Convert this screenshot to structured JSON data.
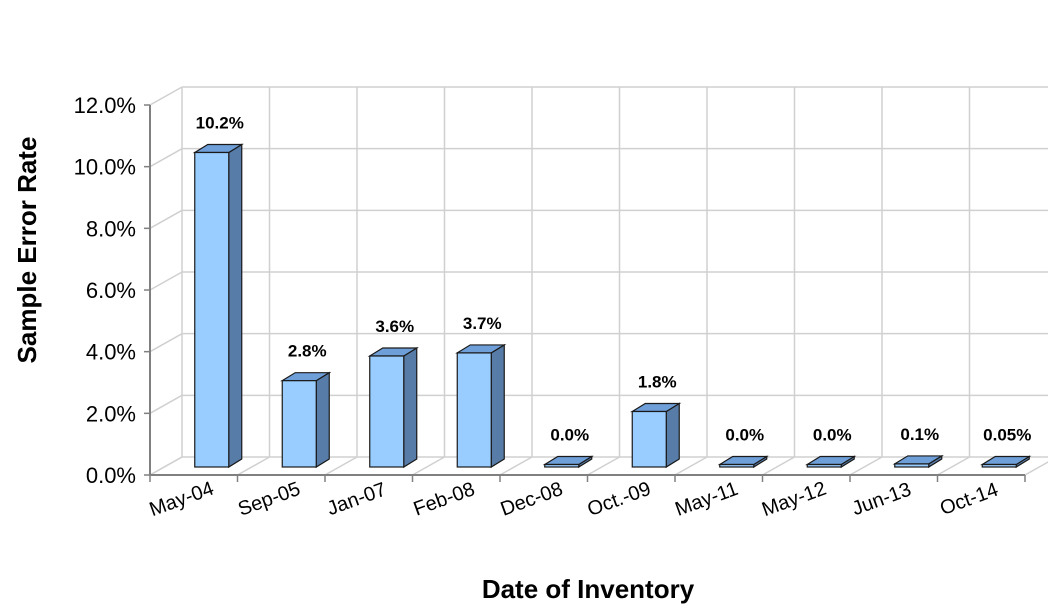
{
  "chart_data": {
    "type": "bar",
    "title": "",
    "xlabel": "Date of Inventory",
    "ylabel": "Sample Error Rate",
    "categories": [
      "May-04",
      "Sep-05",
      "Jan-07",
      "Feb-08",
      "Dec-08",
      "Oct.-09",
      "May-11",
      "May-12",
      "Jun-13",
      "Oct-14"
    ],
    "values": [
      10.2,
      2.8,
      3.6,
      3.7,
      0.0,
      1.8,
      0.0,
      0.0,
      0.1,
      0.05
    ],
    "data_labels": [
      "10.2%",
      "2.8%",
      "3.6%",
      "3.7%",
      "0.0%",
      "1.8%",
      "0.0%",
      "0.0%",
      "0.1%",
      "0.05%"
    ],
    "ylim": [
      0,
      12
    ],
    "yticks": [
      "0.0%",
      "2.0%",
      "4.0%",
      "6.0%",
      "8.0%",
      "10.0%",
      "12.0%"
    ],
    "grid": true,
    "style": "3d-column",
    "colors": {
      "bar_front": "#99ccff",
      "bar_top": "#6f9fd8",
      "bar_side": "#587ca8",
      "grid": "#d0d0d0",
      "axis": "#808080"
    }
  }
}
